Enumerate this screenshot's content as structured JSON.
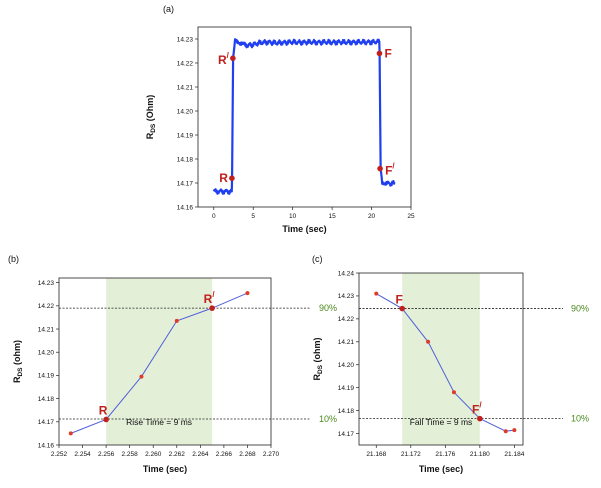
{
  "chart_data": [
    {
      "panel": "(a)",
      "type": "line",
      "xlabel": "Time (sec)",
      "ylabel": "R_DS (Ohm)",
      "xlim": [
        -2,
        25
      ],
      "ylim": [
        14.16,
        14.235
      ],
      "xticks": [
        0,
        5,
        10,
        15,
        20,
        25
      ],
      "yticks": [
        14.16,
        14.17,
        14.18,
        14.19,
        14.2,
        14.21,
        14.22,
        14.23
      ],
      "ytick_labels": [
        "14.16",
        "14.17",
        "14.18",
        "14.19",
        "14.20",
        "14.21",
        "14.22",
        "14.23"
      ],
      "series": [
        {
          "name": "R_DS",
          "color": "#1f3ff0",
          "x": [
            0,
            2.28,
            2.32,
            2.45,
            2.7,
            3.2,
            4,
            5,
            6,
            7,
            8,
            9,
            10,
            11,
            12,
            13,
            14,
            15,
            16,
            17,
            18,
            19,
            20,
            20.7,
            20.98,
            21.02,
            21.15,
            21.35,
            22,
            23
          ],
          "y": [
            14.1665,
            14.1665,
            14.172,
            14.222,
            14.2295,
            14.2288,
            14.2273,
            14.2277,
            14.2285,
            14.2287,
            14.2283,
            14.2286,
            14.2287,
            14.2286,
            14.2287,
            14.2286,
            14.2287,
            14.2286,
            14.2287,
            14.2286,
            14.2287,
            14.2287,
            14.2287,
            14.2288,
            14.2288,
            14.224,
            14.176,
            14.1705,
            14.1698,
            14.1698
          ]
        }
      ],
      "markers": [
        {
          "label": "R",
          "x": 2.3,
          "y": 14.172,
          "label_side": "left"
        },
        {
          "label": "R/",
          "x": 2.42,
          "y": 14.222,
          "label_side": "left"
        },
        {
          "label": "F",
          "x": 21.0,
          "y": 14.224,
          "label_side": "right"
        },
        {
          "label": "F/",
          "x": 21.08,
          "y": 14.176,
          "label_side": "right"
        }
      ]
    },
    {
      "panel": "(b)",
      "type": "line",
      "xlabel": "Time (sec)",
      "ylabel": "R_DS (ohm)",
      "xlim": [
        2.252,
        2.27
      ],
      "ylim": [
        14.16,
        14.232
      ],
      "xticks": [
        2.252,
        2.254,
        2.256,
        2.258,
        2.26,
        2.262,
        2.264,
        2.266,
        2.268,
        2.27
      ],
      "xtick_labels": [
        "2.252",
        "2.254",
        "2.256",
        "2.258",
        "2.260",
        "2.262",
        "2.264",
        "2.266",
        "2.268",
        "2.270"
      ],
      "yticks": [
        14.16,
        14.17,
        14.18,
        14.19,
        14.2,
        14.21,
        14.22,
        14.23
      ],
      "ytick_labels": [
        "14.16",
        "14.17",
        "14.18",
        "14.19",
        "14.20",
        "14.21",
        "14.22",
        "14.23"
      ],
      "series": [
        {
          "name": "R_DS",
          "color": "#5060d8",
          "x": [
            2.253,
            2.256,
            2.259,
            2.262,
            2.265,
            2.268
          ],
          "y": [
            14.165,
            14.171,
            14.1895,
            14.2135,
            14.219,
            14.2255
          ]
        }
      ],
      "shade": {
        "x0": 2.256,
        "x1": 2.265
      },
      "hlines": [
        {
          "y": 14.219,
          "label": "90%"
        },
        {
          "y": 14.1712,
          "label": "10%"
        }
      ],
      "markers": [
        {
          "label": "R",
          "x": 2.256,
          "y": 14.171
        },
        {
          "label": "R/",
          "x": 2.265,
          "y": 14.219
        }
      ],
      "annotation": "Rise Time = 9 ms"
    },
    {
      "panel": "(c)",
      "type": "line",
      "xlabel": "Time (sec)",
      "ylabel": "R_DS (ohm)",
      "xlim": [
        21.166,
        21.185
      ],
      "ylim": [
        14.165,
        14.24
      ],
      "xticks": [
        21.168,
        21.172,
        21.176,
        21.18,
        21.184
      ],
      "xtick_labels": [
        "21.168",
        "21.172",
        "21.176",
        "21.180",
        "21.184"
      ],
      "yticks": [
        14.17,
        14.18,
        14.19,
        14.2,
        14.21,
        14.22,
        14.23,
        14.24
      ],
      "ytick_labels": [
        "14.17",
        "14.18",
        "14.19",
        "14.20",
        "14.21",
        "14.22",
        "14.23",
        "14.24"
      ],
      "series": [
        {
          "name": "R_DS",
          "color": "#5060d8",
          "x": [
            21.168,
            21.171,
            21.174,
            21.177,
            21.18,
            21.183,
            21.184
          ],
          "y": [
            14.231,
            14.2245,
            14.21,
            14.188,
            14.1765,
            14.171,
            14.1715
          ]
        }
      ],
      "shade": {
        "x0": 21.171,
        "x1": 21.18
      },
      "hlines": [
        {
          "y": 14.2245,
          "label": "90%"
        },
        {
          "y": 14.1765,
          "label": "10%"
        }
      ],
      "markers": [
        {
          "label": "F",
          "x": 21.171,
          "y": 14.2245
        },
        {
          "label": "F/",
          "x": 21.18,
          "y": 14.1765
        }
      ],
      "annotation": "Fall Time = 9 ms"
    }
  ]
}
